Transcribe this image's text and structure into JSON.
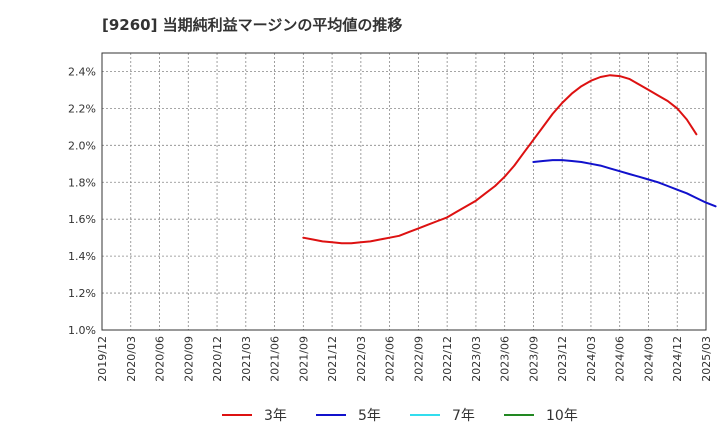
{
  "chart_data": {
    "type": "line",
    "title": "[9260]  当期純利益マージンの平均値の推移",
    "xlabel": "",
    "ylabel": "",
    "x_ticks": [
      "2019/12",
      "2020/03",
      "2020/06",
      "2020/09",
      "2020/12",
      "2021/03",
      "2021/06",
      "2021/09",
      "2021/12",
      "2022/03",
      "2022/06",
      "2022/09",
      "2022/12",
      "2023/03",
      "2023/06",
      "2023/09",
      "2023/12",
      "2024/03",
      "2024/06",
      "2024/09",
      "2024/12",
      "2025/03"
    ],
    "y_ticks": [
      "1.0%",
      "1.2%",
      "1.4%",
      "1.6%",
      "1.8%",
      "2.0%",
      "2.2%",
      "2.4%"
    ],
    "ylim": [
      1.0,
      2.5
    ],
    "grid": true,
    "legend_position": "bottom",
    "series": [
      {
        "name": "3年",
        "color": "#dd1111",
        "points": [
          [
            "2021/09",
            1.5
          ],
          [
            "2021/10",
            1.49
          ],
          [
            "2021/11",
            1.48
          ],
          [
            "2021/12",
            1.475
          ],
          [
            "2022/01",
            1.47
          ],
          [
            "2022/02",
            1.47
          ],
          [
            "2022/03",
            1.475
          ],
          [
            "2022/04",
            1.48
          ],
          [
            "2022/05",
            1.49
          ],
          [
            "2022/06",
            1.5
          ],
          [
            "2022/07",
            1.51
          ],
          [
            "2022/08",
            1.53
          ],
          [
            "2022/09",
            1.55
          ],
          [
            "2022/10",
            1.57
          ],
          [
            "2022/11",
            1.59
          ],
          [
            "2022/12",
            1.61
          ],
          [
            "2023/01",
            1.64
          ],
          [
            "2023/02",
            1.67
          ],
          [
            "2023/03",
            1.7
          ],
          [
            "2023/04",
            1.74
          ],
          [
            "2023/05",
            1.78
          ],
          [
            "2023/06",
            1.83
          ],
          [
            "2023/07",
            1.89
          ],
          [
            "2023/08",
            1.96
          ],
          [
            "2023/09",
            2.03
          ],
          [
            "2023/10",
            2.1
          ],
          [
            "2023/11",
            2.17
          ],
          [
            "2023/12",
            2.23
          ],
          [
            "2024/01",
            2.28
          ],
          [
            "2024/02",
            2.32
          ],
          [
            "2024/03",
            2.35
          ],
          [
            "2024/04",
            2.37
          ],
          [
            "2024/05",
            2.38
          ],
          [
            "2024/06",
            2.375
          ],
          [
            "2024/07",
            2.36
          ],
          [
            "2024/08",
            2.33
          ],
          [
            "2024/09",
            2.3
          ],
          [
            "2024/10",
            2.27
          ],
          [
            "2024/11",
            2.24
          ],
          [
            "2024/12",
            2.2
          ],
          [
            "2025/01",
            2.14
          ],
          [
            "2025/02",
            2.06
          ]
        ]
      },
      {
        "name": "5年",
        "color": "#1111cc",
        "points": [
          [
            "2023/09",
            1.91
          ],
          [
            "2023/10",
            1.915
          ],
          [
            "2023/11",
            1.92
          ],
          [
            "2023/12",
            1.92
          ],
          [
            "2024/01",
            1.915
          ],
          [
            "2024/02",
            1.91
          ],
          [
            "2024/03",
            1.9
          ],
          [
            "2024/04",
            1.89
          ],
          [
            "2024/05",
            1.875
          ],
          [
            "2024/06",
            1.86
          ],
          [
            "2024/07",
            1.845
          ],
          [
            "2024/08",
            1.83
          ],
          [
            "2024/09",
            1.815
          ],
          [
            "2024/10",
            1.8
          ],
          [
            "2024/11",
            1.78
          ],
          [
            "2024/12",
            1.76
          ],
          [
            "2025/01",
            1.74
          ],
          [
            "2025/02",
            1.715
          ],
          [
            "2025/03",
            1.69
          ],
          [
            "2025/04",
            1.67
          ]
        ]
      },
      {
        "name": "7年",
        "color": "#33ddee",
        "points": []
      },
      {
        "name": "10年",
        "color": "#228822",
        "points": []
      }
    ]
  }
}
